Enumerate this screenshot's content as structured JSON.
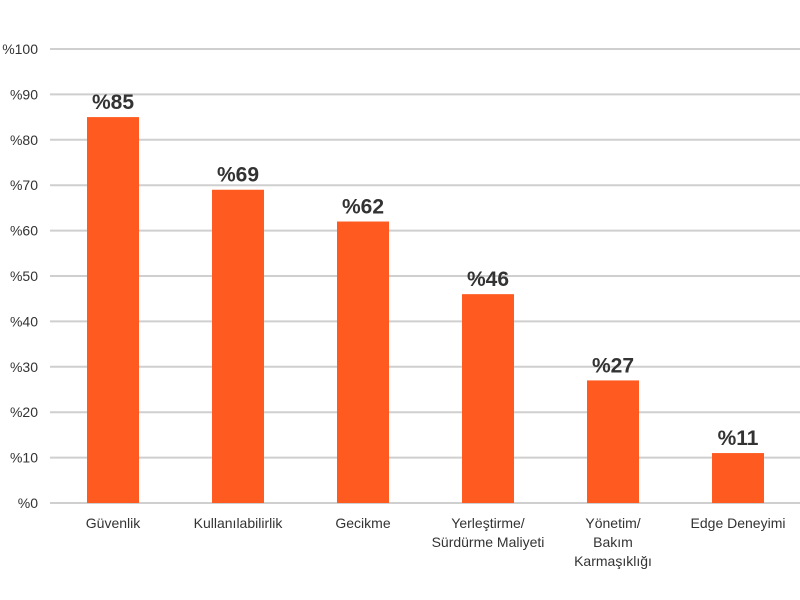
{
  "chart_data": {
    "type": "bar",
    "categories": [
      [
        "Güvenlik"
      ],
      [
        "Kullanılabilirlik"
      ],
      [
        "Gecikme"
      ],
      [
        "Yerleştirme/",
        "Sürdürme Maliyeti"
      ],
      [
        "Yönetim/",
        "Bakım",
        "Karmaşıklığı"
      ],
      [
        "Edge Deneyimi"
      ]
    ],
    "values": [
      85,
      69,
      62,
      46,
      27,
      11
    ],
    "data_labels": [
      "%85",
      "%69",
      "%62",
      "%46",
      "%27",
      "%11"
    ],
    "yticks": [
      0,
      10,
      20,
      30,
      40,
      50,
      60,
      70,
      80,
      90,
      100
    ],
    "ytick_labels": [
      "%0",
      "%10",
      "%20",
      "%30",
      "%40",
      "%50",
      "%60",
      "%70",
      "%80",
      "%90",
      "%100"
    ],
    "ylim": [
      0,
      100
    ],
    "grid": true,
    "bar_color": "#FF5A1F",
    "title": "",
    "xlabel": "",
    "ylabel": ""
  }
}
